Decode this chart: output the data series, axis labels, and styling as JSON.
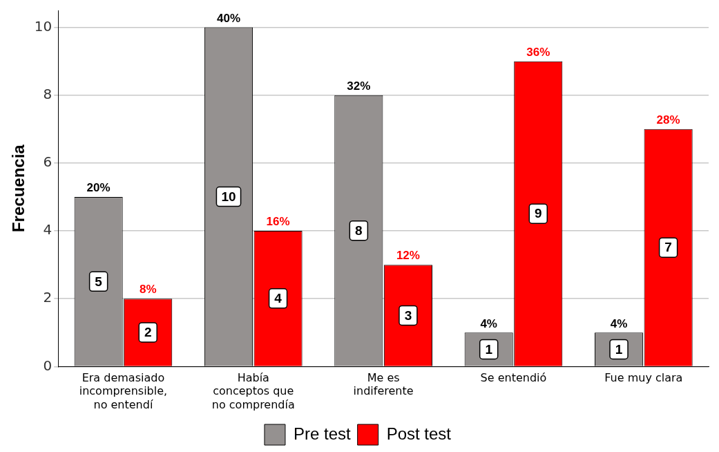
{
  "chart_data": {
    "type": "bar",
    "ylabel": "Frecuencia",
    "categories": [
      "Era demasiado\nincomprensible,\nno entendí",
      "Había\nconceptos que\nno comprendía",
      "Me es\nindiferente",
      "Se entendió",
      "Fue muy clara"
    ],
    "series": [
      {
        "name": "Pre test",
        "color": "#959190",
        "values": [
          5,
          10,
          8,
          1,
          1
        ],
        "value_labels": [
          "5",
          "10",
          "8",
          "1",
          "1"
        ]
      },
      {
        "name": "Post test",
        "color": "#ff0000",
        "values": [
          2,
          4,
          3,
          9,
          7
        ],
        "value_labels": [
          "2",
          "4",
          "3",
          "9",
          "7"
        ]
      }
    ],
    "annotations": [
      {
        "text": "20%",
        "x": "Era demasiado\nincomprensible,\nno entendí",
        "y": 5
      },
      {
        "text": "8%",
        "x": "Era demasiado\nincomprensible,\nno entendí",
        "y": 2
      },
      {
        "text": "40%",
        "x": "Había\nconceptos que\nno comprendía",
        "y": 10
      },
      {
        "text": "16%",
        "x": "Había\nconceptos que\nno comprendía",
        "y": 4
      },
      {
        "text": "32%",
        "x": "Me es\nindiferente",
        "y": 8
      },
      {
        "text": "12%",
        "x": "Me es\nindiferente",
        "y": 3
      },
      {
        "text": "4%",
        "x": "Se entendió",
        "y": 1
      },
      {
        "text": "36%",
        "x": "Se entendió",
        "y": 9
      },
      {
        "text": "4%",
        "x": "Fue muy clara",
        "y": 1
      },
      {
        "text": "28%",
        "x": "Fue muy clara",
        "y": 7
      }
    ],
    "ylim": [
      0,
      10.5
    ],
    "yticks": [
      0,
      2,
      4,
      6,
      8,
      10
    ],
    "grid": "y",
    "legend": "bottom"
  }
}
